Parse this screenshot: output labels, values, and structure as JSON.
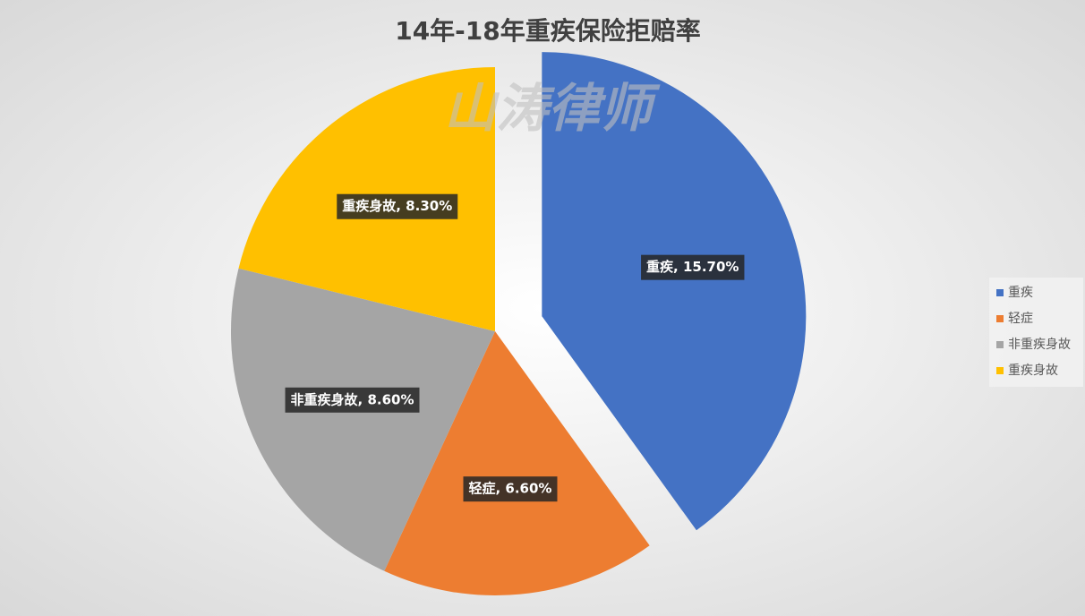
{
  "chart_data": {
    "type": "pie",
    "title": "14年-18年重疾保险拒赔率",
    "watermark": "山涛律师",
    "categories": [
      "重疾",
      "轻症",
      "非重疾身故",
      "重疾身故"
    ],
    "values": [
      15.7,
      6.6,
      8.6,
      8.3
    ],
    "value_labels": [
      "重疾, 15.70%",
      "轻症, 6.60%",
      "非重疾身故, 8.60%",
      "重疾身故, 8.30%"
    ],
    "colors": [
      "#4472c4",
      "#ed7d31",
      "#a5a5a5",
      "#ffc000"
    ],
    "exploded": [
      true,
      false,
      false,
      false
    ],
    "legend": "right"
  }
}
